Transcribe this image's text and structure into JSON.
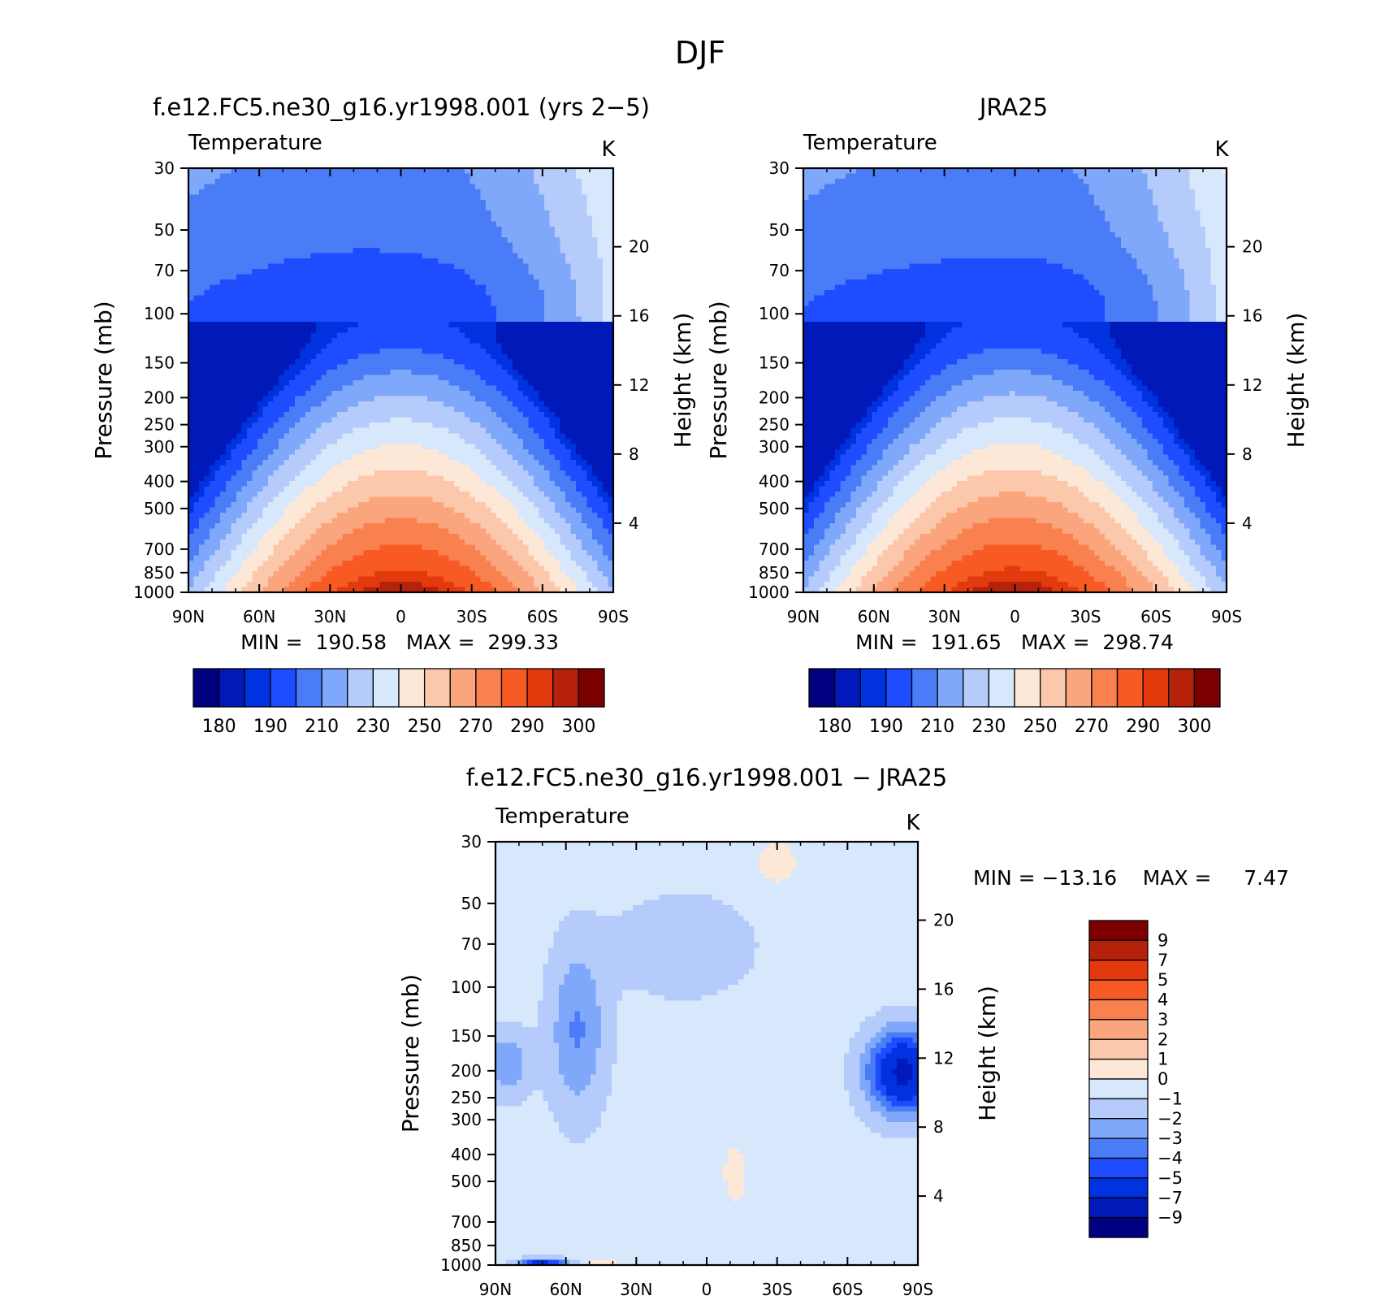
{
  "page": {
    "title": "DJF"
  },
  "chart_data": [
    {
      "type": "heatmap",
      "id": "model",
      "title": "f.e12.FC5.ne30_g16.yr1998.001 (yrs 2−5)",
      "variable": "Temperature",
      "units": "K",
      "ylabel": "Pressure (mb)",
      "ylabel_right": "Height (km)",
      "x_ticks": [
        "90N",
        "60N",
        "30N",
        "0",
        "30S",
        "60S",
        "90S"
      ],
      "x_values": [
        90,
        60,
        30,
        0,
        -30,
        -60,
        -90
      ],
      "y_ticks": [
        30,
        50,
        70,
        100,
        150,
        200,
        250,
        300,
        400,
        500,
        700,
        850,
        1000
      ],
      "y_log": true,
      "y_reversed": true,
      "y_right_ticks": [
        20,
        16,
        12,
        8,
        4
      ],
      "min_max_text": "MIN =  190.58   MAX =  299.33",
      "stats": {
        "min": 190.58,
        "max": 299.33
      },
      "colorbar": {
        "orientation": "horizontal",
        "colors": [
          "#000080",
          "#0019b8",
          "#0032e0",
          "#1e4dff",
          "#4a7cf7",
          "#80a8fa",
          "#b4cbfb",
          "#d7e8fc",
          "#fde8d8",
          "#fcc8ab",
          "#fba57f",
          "#f9804f",
          "#f85a24",
          "#e23a0c",
          "#b5210a",
          "#7d0000"
        ],
        "labels": [
          "180",
          "190",
          "210",
          "230",
          "250",
          "270",
          "290",
          "300"
        ]
      }
    },
    {
      "type": "heatmap",
      "id": "obs",
      "title": "JRA25",
      "variable": "Temperature",
      "units": "K",
      "ylabel": "Pressure (mb)",
      "ylabel_right": "Height (km)",
      "x_ticks": [
        "90N",
        "60N",
        "30N",
        "0",
        "30S",
        "60S",
        "90S"
      ],
      "x_values": [
        90,
        60,
        30,
        0,
        -30,
        -60,
        -90
      ],
      "y_ticks": [
        30,
        50,
        70,
        100,
        150,
        200,
        250,
        300,
        400,
        500,
        700,
        850,
        1000
      ],
      "y_log": true,
      "y_reversed": true,
      "y_right_ticks": [
        20,
        16,
        12,
        8,
        4
      ],
      "min_max_text": "MIN =  191.65   MAX =  298.74",
      "stats": {
        "min": 191.65,
        "max": 298.74
      },
      "colorbar": {
        "orientation": "horizontal",
        "colors": [
          "#000080",
          "#0019b8",
          "#0032e0",
          "#1e4dff",
          "#4a7cf7",
          "#80a8fa",
          "#b4cbfb",
          "#d7e8fc",
          "#fde8d8",
          "#fcc8ab",
          "#fba57f",
          "#f9804f",
          "#f85a24",
          "#e23a0c",
          "#b5210a",
          "#7d0000"
        ],
        "labels": [
          "180",
          "190",
          "210",
          "230",
          "250",
          "270",
          "290",
          "300"
        ]
      }
    },
    {
      "type": "heatmap",
      "id": "diff",
      "title": "f.e12.FC5.ne30_g16.yr1998.001 − JRA25",
      "variable": "Temperature",
      "units": "K",
      "ylabel": "Pressure (mb)",
      "ylabel_right": "Height (km)",
      "x_ticks": [
        "90N",
        "60N",
        "30N",
        "0",
        "30S",
        "60S",
        "90S"
      ],
      "x_values": [
        90,
        60,
        30,
        0,
        -30,
        -60,
        -90
      ],
      "y_ticks": [
        30,
        50,
        70,
        100,
        150,
        200,
        250,
        300,
        400,
        500,
        700,
        850,
        1000
      ],
      "y_log": true,
      "y_reversed": true,
      "y_right_ticks": [
        20,
        16,
        12,
        8,
        4
      ],
      "min_max_text": "MIN = −13.16    MAX =     7.47",
      "stats": {
        "min": -13.16,
        "max": 7.47
      },
      "colorbar": {
        "orientation": "vertical",
        "colors_top_to_bottom": [
          "#7d0000",
          "#b5210a",
          "#e23a0c",
          "#f85a24",
          "#f9804f",
          "#fba57f",
          "#fcc8ab",
          "#fde8d8",
          "#d7e8fc",
          "#b4cbfb",
          "#80a8fa",
          "#4a7cf7",
          "#1e4dff",
          "#0032e0",
          "#0019b8",
          "#000080"
        ],
        "labels": [
          "9",
          "7",
          "5",
          "4",
          "3",
          "2",
          "1",
          "0",
          "−1",
          "−2",
          "−3",
          "−4",
          "−5",
          "−7",
          "−9"
        ]
      }
    }
  ]
}
